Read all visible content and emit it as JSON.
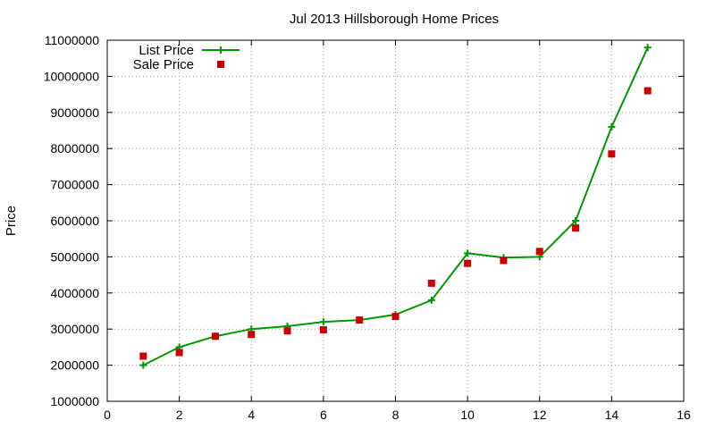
{
  "chart_data": {
    "type": "line",
    "title": "Jul 2013 Hillsborough Home Prices",
    "xlabel": "",
    "ylabel": "Price",
    "xlim": [
      0,
      16
    ],
    "ylim": [
      1000000,
      11000000
    ],
    "xticks": [
      0,
      2,
      4,
      6,
      8,
      10,
      12,
      14,
      16
    ],
    "xtick_labels": [
      "0",
      "2",
      "4",
      "6",
      "8",
      "10",
      "12",
      "14",
      "16"
    ],
    "yticks": [
      1000000,
      2000000,
      3000000,
      4000000,
      5000000,
      6000000,
      7000000,
      8000000,
      9000000,
      10000000,
      11000000
    ],
    "ytick_labels": [
      "1000000",
      "2000000",
      "3000000",
      "4000000",
      "5000000",
      "6000000",
      "7000000",
      "8000000",
      "9000000",
      "10000000",
      "11000000"
    ],
    "grid": true,
    "legend_position": "top-left",
    "x": [
      1,
      2,
      3,
      4,
      5,
      6,
      7,
      8,
      9,
      10,
      11,
      12,
      13,
      14,
      15
    ],
    "series": [
      {
        "name": "List Price",
        "style": "line-with-plus-markers",
        "color": "#009900",
        "values": [
          2000000,
          2500000,
          2800000,
          3000000,
          3080000,
          3200000,
          3250000,
          3400000,
          3800000,
          5100000,
          4980000,
          5000000,
          6000000,
          8600000,
          10800000
        ]
      },
      {
        "name": "Sale Price",
        "style": "square-markers",
        "color": "#cc0000",
        "values": [
          2250000,
          2350000,
          2800000,
          2850000,
          2950000,
          2980000,
          3250000,
          3350000,
          4270000,
          4820000,
          4900000,
          5150000,
          5800000,
          7850000,
          9600000
        ]
      }
    ]
  }
}
